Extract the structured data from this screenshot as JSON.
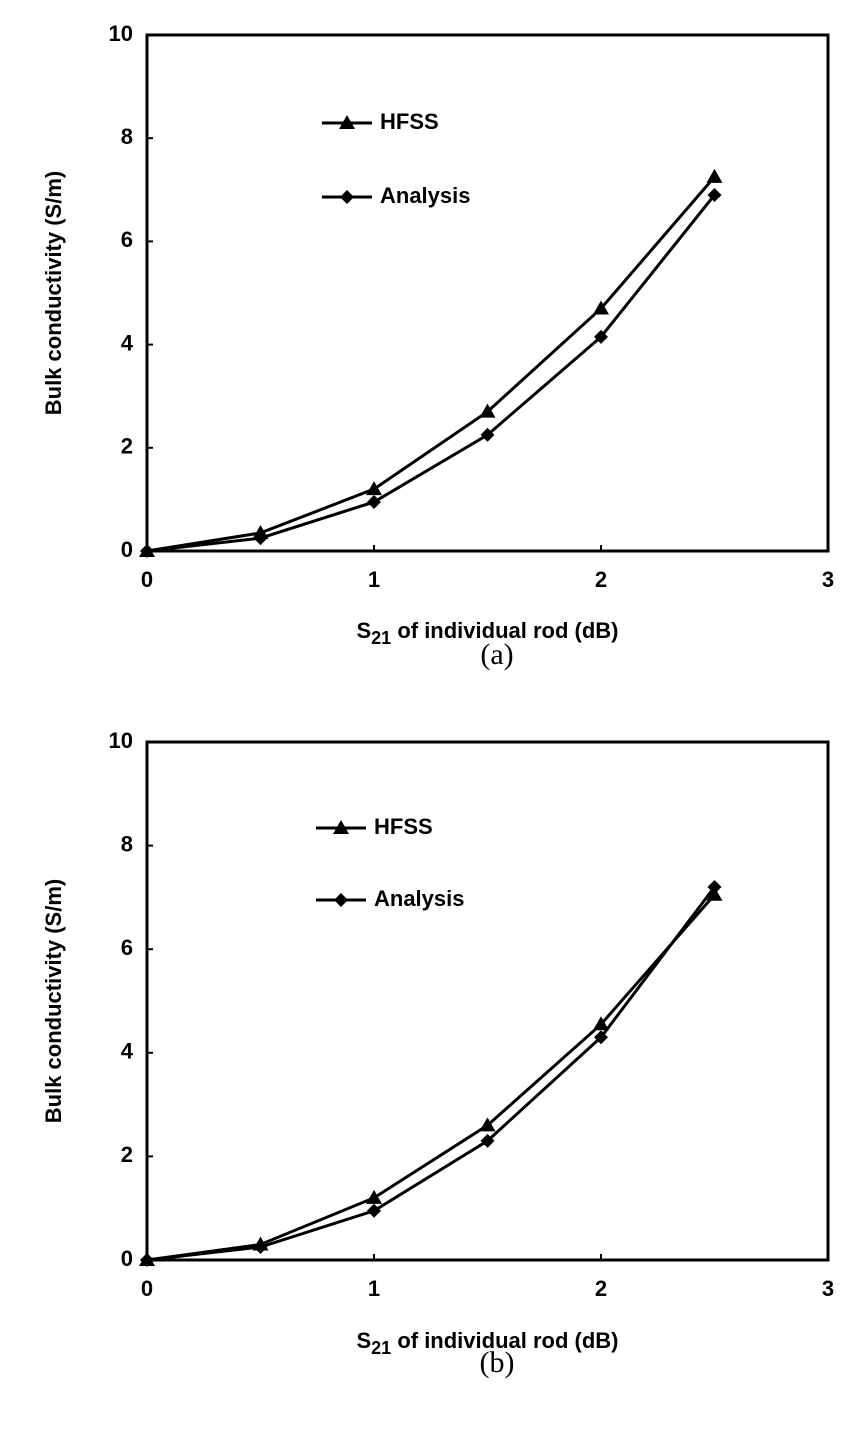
{
  "chart_data": [
    {
      "type": "line",
      "caption": "(a)",
      "x_label": {
        "text": "S",
        "subscript": "21",
        "after": " of individual rod (dB)"
      },
      "y_label": "Bulk conductivity (S/m)",
      "x": [
        0,
        0.5,
        1,
        1.5,
        2,
        2.5
      ],
      "series": [
        {
          "name": "HFSS",
          "color": "#000000",
          "marker": "triangle",
          "values": [
            0,
            0.35,
            1.2,
            2.7,
            4.7,
            7.25
          ]
        },
        {
          "name": "Analysis",
          "color": "#000000",
          "marker": "diamond",
          "values": [
            0,
            0.25,
            0.95,
            2.25,
            4.15,
            6.9
          ]
        }
      ],
      "xlim": [
        0,
        3
      ],
      "xticks": [
        0,
        1,
        2,
        3
      ],
      "ylim": [
        0,
        10
      ],
      "yticks": [
        0,
        2,
        4,
        6,
        8,
        10
      ],
      "legend": "upper left"
    },
    {
      "type": "line",
      "caption": "(b)",
      "x_label": {
        "text": "S",
        "subscript": "21",
        "after": " of individual rod (dB)"
      },
      "y_label": "Bulk conductivity (S/m)",
      "x": [
        0,
        0.5,
        1,
        1.5,
        2,
        2.5
      ],
      "series": [
        {
          "name": "HFSS",
          "color": "#000000",
          "marker": "triangle",
          "values": [
            0,
            0.3,
            1.2,
            2.6,
            4.55,
            7.05
          ]
        },
        {
          "name": "Analysis",
          "color": "#000000",
          "marker": "diamond",
          "values": [
            0,
            0.25,
            0.95,
            2.3,
            4.3,
            7.2
          ]
        }
      ],
      "xlim": [
        0,
        3
      ],
      "xticks": [
        0,
        1,
        2,
        3
      ],
      "ylim": [
        0,
        10
      ],
      "yticks": [
        0,
        2,
        4,
        6,
        8,
        10
      ],
      "legend": "upper left"
    }
  ]
}
